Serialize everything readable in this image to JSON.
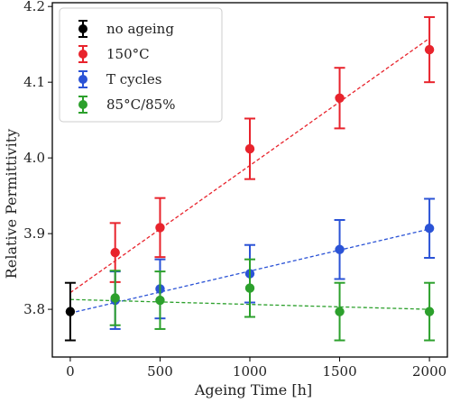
{
  "chart_data": {
    "type": "scatter",
    "title": "",
    "xlabel": "Ageing Time [h]",
    "ylabel": "Relative Permittivity",
    "xlim": [
      -100,
      2100
    ],
    "ylim": [
      3.737,
      4.205
    ],
    "xticks": [
      0,
      500,
      1000,
      1500,
      2000
    ],
    "yticks": [
      3.8,
      3.9,
      4.0,
      4.1,
      4.2
    ],
    "xtick_labels": [
      "0",
      "500",
      "1000",
      "1500",
      "2000"
    ],
    "ytick_labels": [
      "3.8",
      "3.9",
      "4.0",
      "4.1",
      "4.2"
    ],
    "grid": false,
    "legend_position": "top-left",
    "series": [
      {
        "name": "no ageing",
        "color": "#000000",
        "points": [
          {
            "x": 0,
            "y": 3.797,
            "err": 0.038
          }
        ],
        "trend": null
      },
      {
        "name": "150°C",
        "color": "#e8232c",
        "points": [
          {
            "x": 250,
            "y": 3.875,
            "err": 0.039
          },
          {
            "x": 500,
            "y": 3.908,
            "err": 0.039
          },
          {
            "x": 1000,
            "y": 4.012,
            "err": 0.04
          },
          {
            "x": 1500,
            "y": 4.079,
            "err": 0.04
          },
          {
            "x": 2000,
            "y": 4.143,
            "err": 0.043
          }
        ],
        "trend": {
          "x": [
            0,
            2000
          ],
          "y": [
            3.822,
            4.158
          ]
        }
      },
      {
        "name": "T cycles",
        "color": "#2b53d6",
        "points": [
          {
            "x": 250,
            "y": 3.812,
            "err": 0.038
          },
          {
            "x": 500,
            "y": 3.827,
            "err": 0.039
          },
          {
            "x": 1000,
            "y": 3.847,
            "err": 0.038
          },
          {
            "x": 1500,
            "y": 3.879,
            "err": 0.039
          },
          {
            "x": 2000,
            "y": 3.907,
            "err": 0.039
          }
        ],
        "trend": {
          "x": [
            0,
            2000
          ],
          "y": [
            3.795,
            3.906
          ]
        }
      },
      {
        "name": "85°C/85%",
        "color": "#2ca02c",
        "points": [
          {
            "x": 250,
            "y": 3.815,
            "err": 0.036
          },
          {
            "x": 500,
            "y": 3.812,
            "err": 0.038
          },
          {
            "x": 1000,
            "y": 3.828,
            "err": 0.038
          },
          {
            "x": 1500,
            "y": 3.797,
            "err": 0.038
          },
          {
            "x": 2000,
            "y": 3.797,
            "err": 0.038
          }
        ],
        "trend": {
          "x": [
            0,
            2000
          ],
          "y": [
            3.813,
            3.8
          ]
        }
      }
    ]
  }
}
